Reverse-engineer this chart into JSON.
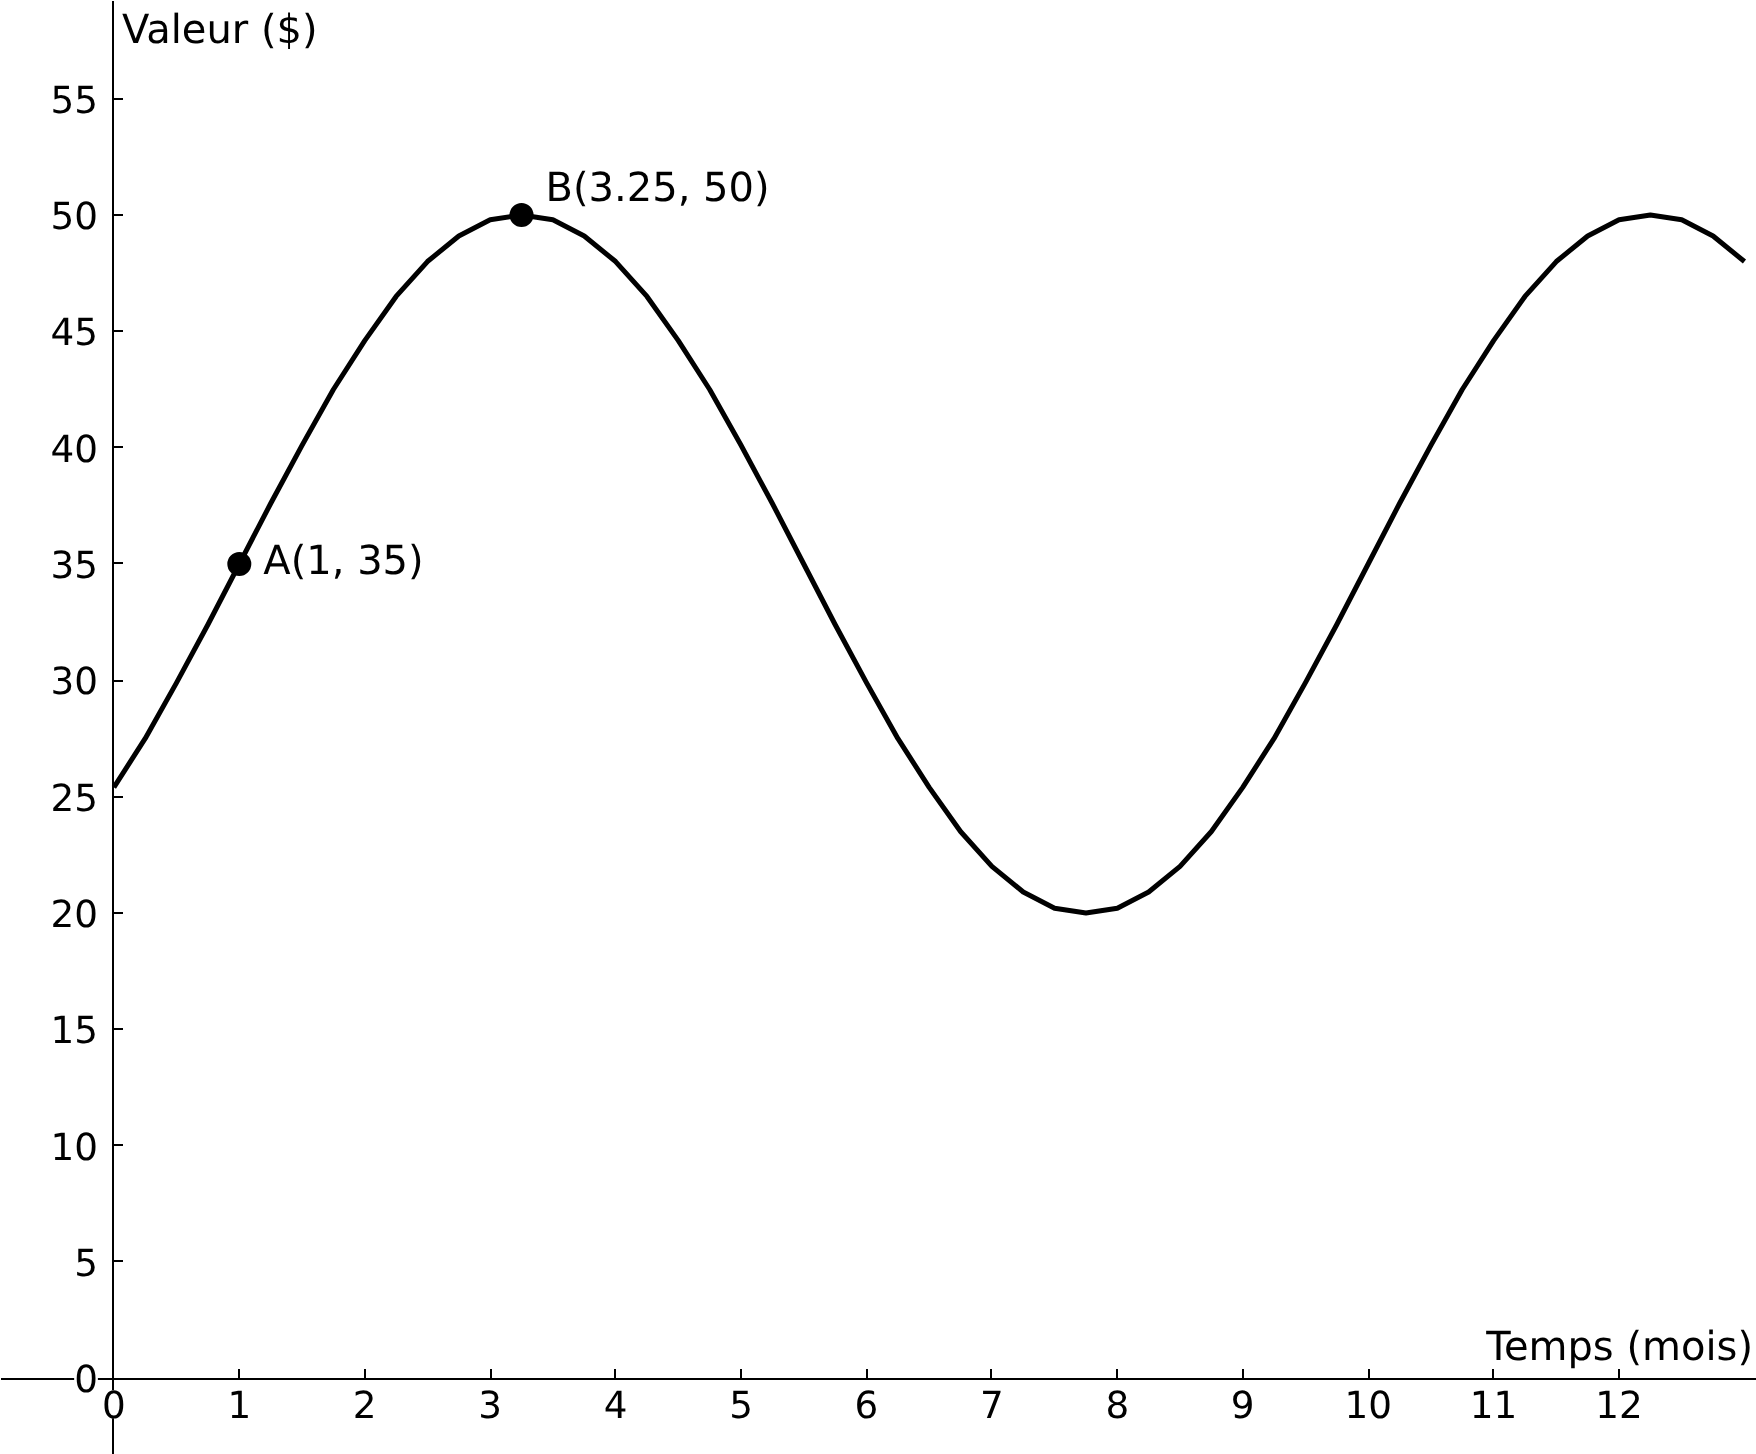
{
  "chart_data": {
    "type": "line",
    "xlabel": "Temps (mois)",
    "ylabel": "Valeur ($)",
    "xlim": [
      -0.9,
      13.1
    ],
    "ylim": [
      -3.3,
      59.2
    ],
    "xticks": [
      0,
      1,
      2,
      3,
      4,
      5,
      6,
      7,
      8,
      9,
      10,
      11,
      12
    ],
    "yticks": [
      0,
      5,
      10,
      15,
      20,
      25,
      30,
      35,
      40,
      45,
      50,
      55
    ],
    "series": [
      {
        "color": "#000000",
        "marker": "none",
        "x": [
          0,
          0.25,
          0.5,
          0.75,
          1,
          1.25,
          1.5,
          1.75,
          2,
          2.25,
          2.5,
          2.75,
          3,
          3.25,
          3.5,
          3.75,
          4,
          4.25,
          4.5,
          4.75,
          5,
          5.25,
          5.5,
          5.75,
          6,
          6.25,
          6.5,
          6.75,
          7,
          7.25,
          7.5,
          7.75,
          8,
          8.25,
          8.5,
          8.75,
          9,
          9.25,
          9.5,
          9.75,
          10,
          10.25,
          10.5,
          10.75,
          11,
          11.25,
          11.5,
          11.75,
          12,
          12.25,
          12.5,
          12.75,
          13
        ],
        "values": [
          25.4,
          27.5,
          29.9,
          32.4,
          35,
          37.6,
          40.1,
          42.5,
          44.6,
          46.5,
          48.0,
          49.1,
          49.8,
          50,
          49.8,
          49.1,
          48.0,
          46.5,
          44.6,
          42.5,
          40.1,
          37.6,
          35,
          32.4,
          29.9,
          27.5,
          25.4,
          23.5,
          22.0,
          20.9,
          20.2,
          20,
          20.2,
          20.9,
          22.0,
          23.5,
          25.4,
          27.5,
          29.9,
          32.4,
          35,
          37.6,
          40.1,
          42.5,
          44.6,
          46.5,
          48.0,
          49.1,
          49.8,
          50,
          49.8,
          49.1,
          48.0
        ]
      },
      {
        "type": "scatter",
        "color": "#000000",
        "marker": "circle",
        "x": [
          1,
          3.25
        ],
        "values": [
          35,
          50
        ]
      }
    ],
    "annotations": [
      {
        "text": "A(1, 35)",
        "x": 1,
        "y": 35
      },
      {
        "text": "B(3.25, 50)",
        "x": 3.25,
        "y": 50
      }
    ]
  }
}
